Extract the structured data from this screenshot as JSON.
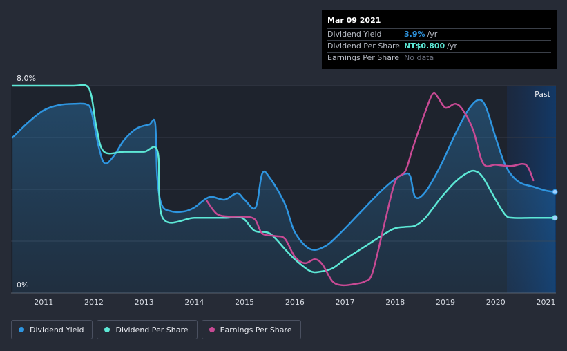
{
  "tooltip": {
    "date": "Mar 09 2021",
    "rows": [
      {
        "label": "Dividend Yield",
        "value": "3.9%",
        "unit": "/yr",
        "color": "#2e95e0"
      },
      {
        "label": "Dividend Per Share",
        "value": "NT$0.800",
        "unit": "/yr",
        "color": "#5de8d6"
      },
      {
        "label": "Earnings Per Share",
        "value": "No data",
        "unit": "",
        "color": "#6d7280"
      }
    ]
  },
  "past_label": "Past",
  "legend": [
    {
      "label": "Dividend Yield",
      "color": "#2e95e0"
    },
    {
      "label": "Dividend Per Share",
      "color": "#5de8d6"
    },
    {
      "label": "Earnings Per Share",
      "color": "#c84a94"
    }
  ],
  "chart_data": {
    "type": "line",
    "title": "",
    "xlabel": "",
    "ylabel": "",
    "x_ticks": [
      "2011",
      "2012",
      "2013",
      "2014",
      "2015",
      "2016",
      "2017",
      "2018",
      "2019",
      "2020",
      "2021"
    ],
    "x_range": [
      2010.35,
      2021.2
    ],
    "y_ticks": [
      "0%",
      "8.0%"
    ],
    "ylim": [
      0,
      8.0
    ],
    "grid": true,
    "series": [
      {
        "name": "Dividend Yield",
        "unit": "%",
        "color": "#2e95e0",
        "area": true,
        "points": [
          [
            2010.38,
            6.0
          ],
          [
            2010.7,
            6.6
          ],
          [
            2011.0,
            7.05
          ],
          [
            2011.3,
            7.25
          ],
          [
            2011.6,
            7.3
          ],
          [
            2011.85,
            7.28
          ],
          [
            2011.95,
            7.0
          ],
          [
            2012.1,
            5.6
          ],
          [
            2012.22,
            5.0
          ],
          [
            2012.4,
            5.3
          ],
          [
            2012.6,
            5.9
          ],
          [
            2012.85,
            6.35
          ],
          [
            2013.1,
            6.5
          ],
          [
            2013.22,
            6.55
          ],
          [
            2013.26,
            4.5
          ],
          [
            2013.35,
            3.4
          ],
          [
            2013.55,
            3.15
          ],
          [
            2013.8,
            3.15
          ],
          [
            2014.0,
            3.3
          ],
          [
            2014.3,
            3.7
          ],
          [
            2014.6,
            3.6
          ],
          [
            2014.85,
            3.85
          ],
          [
            2015.0,
            3.6
          ],
          [
            2015.22,
            3.3
          ],
          [
            2015.35,
            4.6
          ],
          [
            2015.5,
            4.45
          ],
          [
            2015.8,
            3.45
          ],
          [
            2016.0,
            2.35
          ],
          [
            2016.3,
            1.7
          ],
          [
            2016.6,
            1.8
          ],
          [
            2016.9,
            2.3
          ],
          [
            2017.3,
            3.1
          ],
          [
            2017.7,
            3.9
          ],
          [
            2018.0,
            4.4
          ],
          [
            2018.2,
            4.6
          ],
          [
            2018.3,
            4.5
          ],
          [
            2018.4,
            3.7
          ],
          [
            2018.6,
            3.9
          ],
          [
            2018.9,
            4.9
          ],
          [
            2019.2,
            6.15
          ],
          [
            2019.45,
            7.05
          ],
          [
            2019.65,
            7.45
          ],
          [
            2019.8,
            7.2
          ],
          [
            2020.0,
            6.0
          ],
          [
            2020.2,
            4.9
          ],
          [
            2020.45,
            4.3
          ],
          [
            2020.75,
            4.1
          ],
          [
            2021.0,
            3.95
          ],
          [
            2021.18,
            3.9
          ]
        ]
      },
      {
        "name": "Dividend Per Share",
        "unit": "%",
        "color": "#5de8d6",
        "area": false,
        "points": [
          [
            2010.38,
            8.0
          ],
          [
            2011.0,
            8.0
          ],
          [
            2011.6,
            8.0
          ],
          [
            2011.85,
            8.0
          ],
          [
            2011.95,
            7.6
          ],
          [
            2012.05,
            6.4
          ],
          [
            2012.2,
            5.45
          ],
          [
            2012.6,
            5.45
          ],
          [
            2013.0,
            5.45
          ],
          [
            2013.27,
            5.45
          ],
          [
            2013.37,
            2.9
          ],
          [
            2014.0,
            2.9
          ],
          [
            2014.6,
            2.9
          ],
          [
            2014.95,
            2.9
          ],
          [
            2015.2,
            2.4
          ],
          [
            2015.5,
            2.3
          ],
          [
            2015.8,
            1.7
          ],
          [
            2016.0,
            1.3
          ],
          [
            2016.3,
            0.85
          ],
          [
            2016.5,
            0.82
          ],
          [
            2016.75,
            0.95
          ],
          [
            2017.0,
            1.3
          ],
          [
            2017.4,
            1.8
          ],
          [
            2017.8,
            2.3
          ],
          [
            2018.0,
            2.5
          ],
          [
            2018.2,
            2.55
          ],
          [
            2018.4,
            2.6
          ],
          [
            2018.6,
            2.9
          ],
          [
            2018.9,
            3.65
          ],
          [
            2019.2,
            4.3
          ],
          [
            2019.45,
            4.65
          ],
          [
            2019.6,
            4.7
          ],
          [
            2019.75,
            4.45
          ],
          [
            2020.0,
            3.6
          ],
          [
            2020.2,
            3.0
          ],
          [
            2020.35,
            2.9
          ],
          [
            2020.7,
            2.9
          ],
          [
            2021.0,
            2.9
          ],
          [
            2021.18,
            2.9
          ]
        ]
      },
      {
        "name": "Earnings Per Share",
        "unit": "%",
        "color": "#c84a94",
        "area": false,
        "points": [
          [
            2014.25,
            3.55
          ],
          [
            2014.45,
            3.05
          ],
          [
            2014.7,
            2.95
          ],
          [
            2014.95,
            2.95
          ],
          [
            2015.2,
            2.85
          ],
          [
            2015.35,
            2.3
          ],
          [
            2015.6,
            2.2
          ],
          [
            2015.8,
            2.1
          ],
          [
            2016.0,
            1.4
          ],
          [
            2016.2,
            1.15
          ],
          [
            2016.4,
            1.3
          ],
          [
            2016.55,
            1.1
          ],
          [
            2016.75,
            0.45
          ],
          [
            2016.95,
            0.3
          ],
          [
            2017.2,
            0.35
          ],
          [
            2017.4,
            0.45
          ],
          [
            2017.55,
            0.8
          ],
          [
            2017.8,
            2.8
          ],
          [
            2018.0,
            4.3
          ],
          [
            2018.2,
            4.7
          ],
          [
            2018.35,
            5.6
          ],
          [
            2018.6,
            7.0
          ],
          [
            2018.75,
            7.7
          ],
          [
            2018.85,
            7.55
          ],
          [
            2019.0,
            7.15
          ],
          [
            2019.2,
            7.3
          ],
          [
            2019.35,
            7.05
          ],
          [
            2019.55,
            6.3
          ],
          [
            2019.75,
            5.0
          ],
          [
            2020.0,
            4.95
          ],
          [
            2020.3,
            4.9
          ],
          [
            2020.6,
            4.95
          ],
          [
            2020.75,
            4.35
          ]
        ]
      }
    ],
    "end_markers": [
      "Dividend Yield",
      "Dividend Per Share"
    ]
  }
}
